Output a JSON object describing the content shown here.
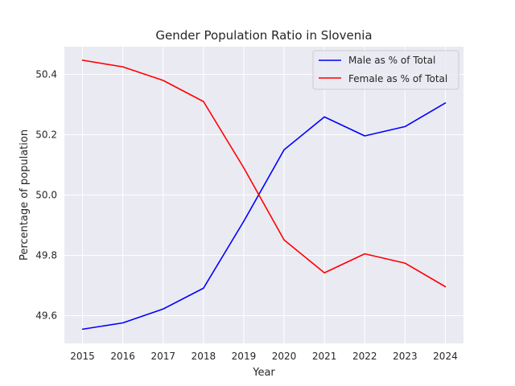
{
  "chart_data": {
    "type": "line",
    "title": "Gender Population Ratio in Slovenia",
    "xlabel": "Year",
    "ylabel": "Percentage of population",
    "x": [
      2015,
      2016,
      2017,
      2018,
      2019,
      2020,
      2021,
      2022,
      2023,
      2024
    ],
    "xticks": [
      "2015",
      "2016",
      "2017",
      "2018",
      "2019",
      "2020",
      "2021",
      "2022",
      "2023",
      "2024"
    ],
    "yticks": [
      49.6,
      49.8,
      50.0,
      50.2,
      50.4
    ],
    "ytick_labels": [
      "49.6",
      "49.8",
      "50.0",
      "50.2",
      "50.4"
    ],
    "xlim": [
      2014.55,
      2024.45
    ],
    "ylim": [
      49.508,
      50.492
    ],
    "grid": true,
    "legend": "upper right",
    "series": [
      {
        "name": "Male as % of Total",
        "color": "#0000ff",
        "values": [
          49.555,
          49.576,
          49.622,
          49.691,
          49.913,
          50.15,
          50.259,
          50.196,
          50.227,
          50.305
        ]
      },
      {
        "name": "Female as % of Total",
        "color": "#ff0000",
        "values": [
          50.447,
          50.425,
          50.38,
          50.31,
          50.09,
          49.851,
          49.742,
          49.805,
          49.774,
          49.696
        ]
      }
    ]
  }
}
